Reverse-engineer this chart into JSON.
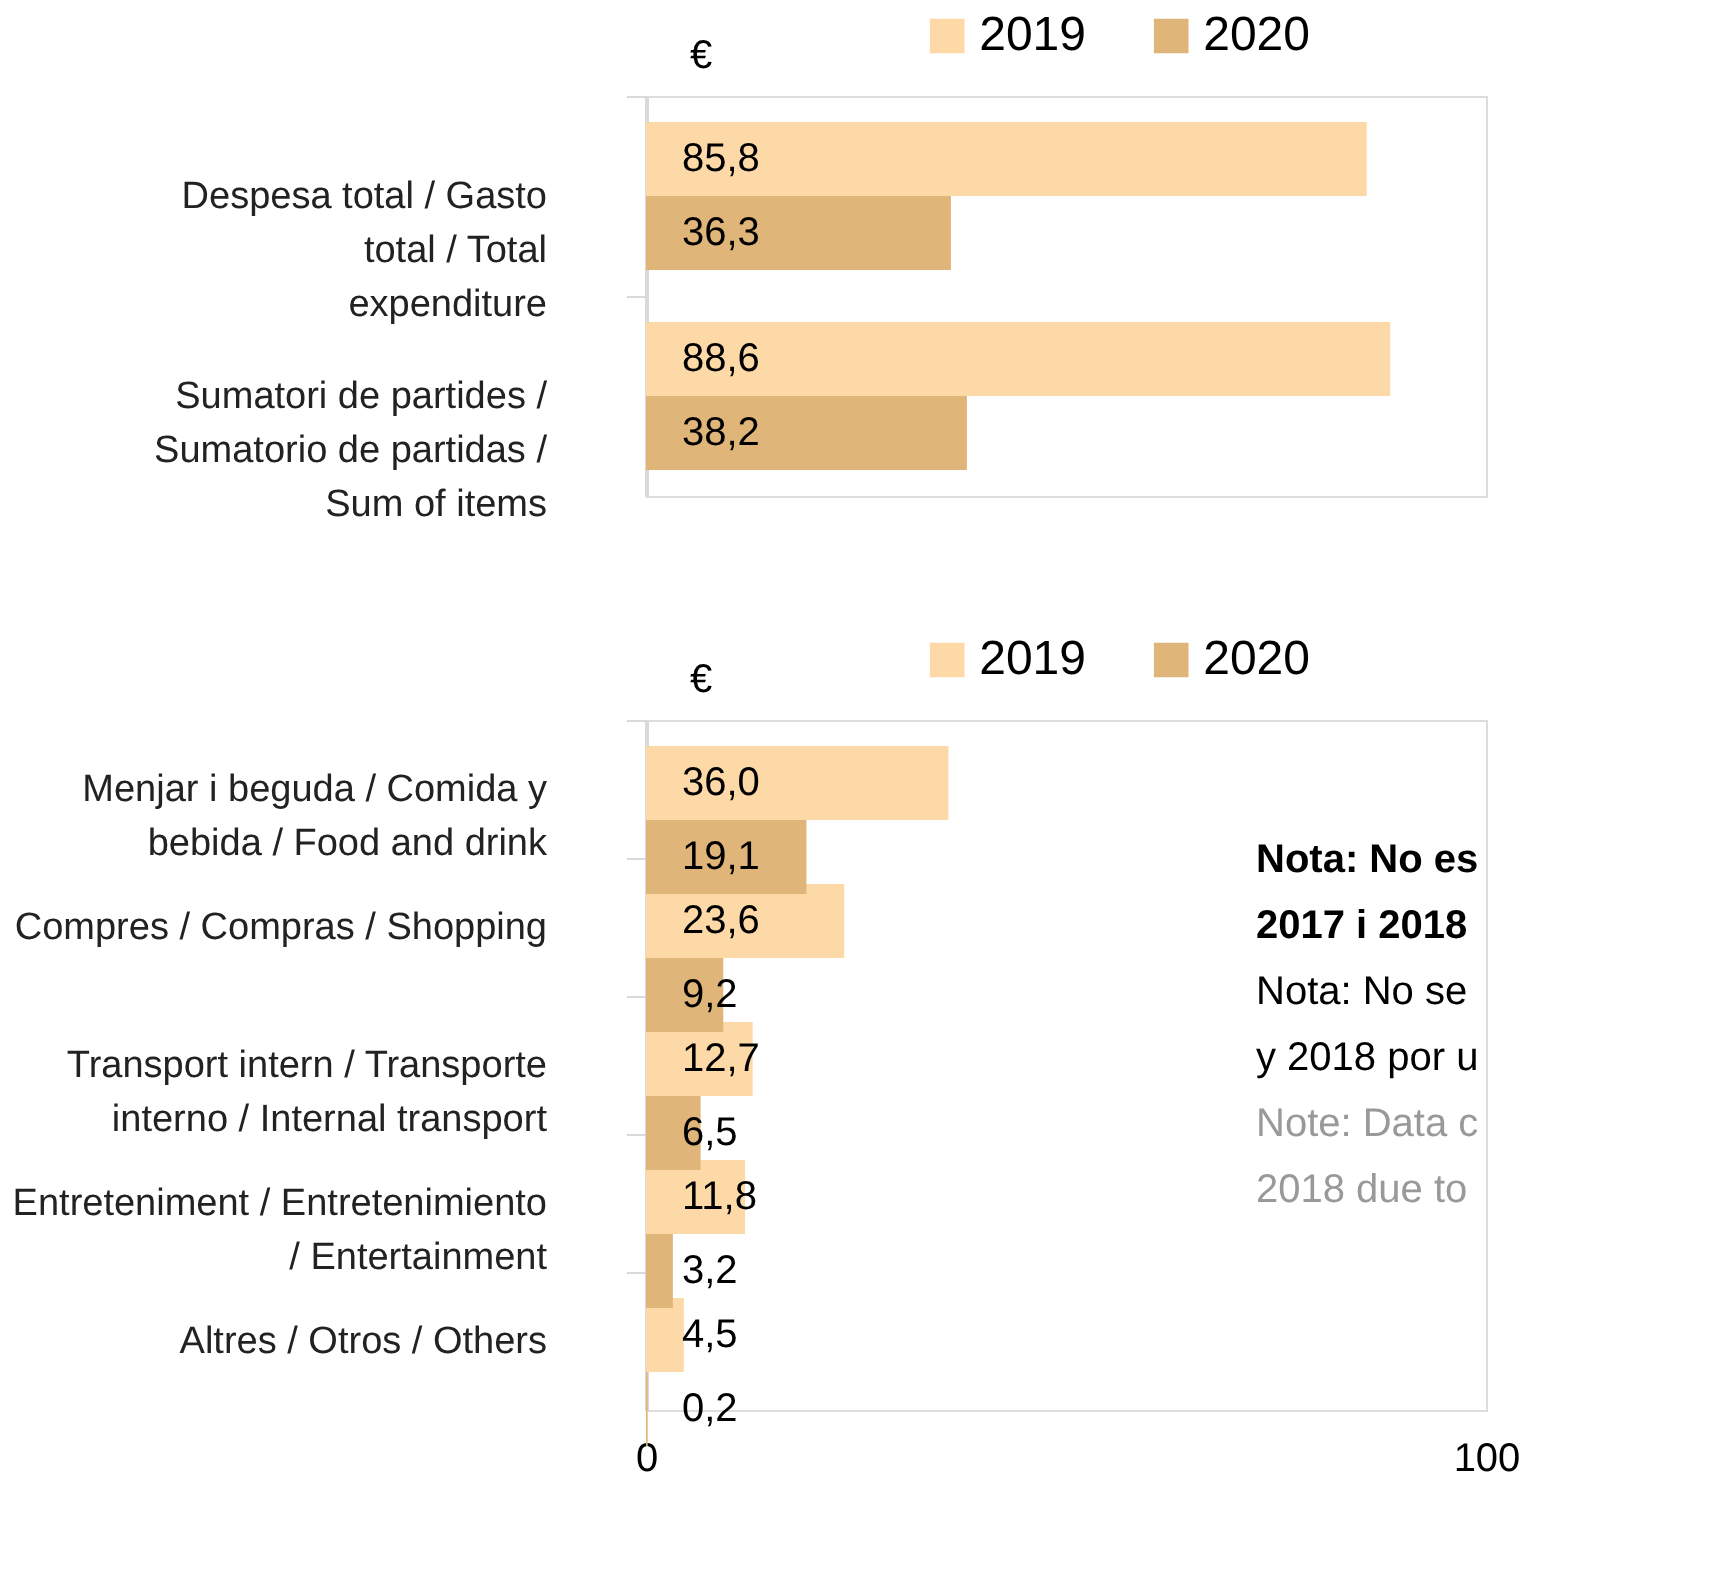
{
  "chart_data": [
    {
      "type": "bar",
      "orientation": "horizontal",
      "xlabel": "€",
      "categories": [
        "Despesa total / Gasto total / Total expenditure",
        "Sumatori de partides / Sumatorio de partidas / Sum of items"
      ],
      "series": [
        {
          "name": "2019",
          "color": "#fdd9a8",
          "values": [
            85.8,
            88.6
          ],
          "value_labels": [
            "85,8",
            "88,6"
          ]
        },
        {
          "name": "2020",
          "color": "#e0b57a",
          "values": [
            36.3,
            38.2
          ],
          "value_labels": [
            "36,3",
            "38,2"
          ]
        }
      ],
      "xlim": [
        0,
        100
      ],
      "tick_labels": "y",
      "legend": "top",
      "grid": false
    },
    {
      "type": "bar",
      "orientation": "horizontal",
      "xlabel": "€",
      "categories": [
        "Menjar i beguda / Comida y bebida / Food and drink",
        "Compres / Compras / Shopping",
        "Transport intern / Transporte interno / Internal transport",
        "Entreteniment / Entretenimiento / Entertainment",
        "Altres / Otros / Others"
      ],
      "series": [
        {
          "name": "2019",
          "color": "#fdd9a8",
          "values": [
            36.0,
            23.6,
            12.7,
            11.8,
            4.5
          ],
          "value_labels": [
            "36,0",
            "23,6",
            "12,7",
            "11,8",
            "4,5"
          ]
        },
        {
          "name": "2020",
          "color": "#e0b57a",
          "values": [
            19.1,
            9.2,
            6.5,
            3.2,
            0.2
          ],
          "value_labels": [
            "19,1",
            "9,2",
            "6,5",
            "3,2",
            "0,2"
          ]
        }
      ],
      "xlim": [
        0,
        100
      ],
      "xticks": [
        0,
        100
      ],
      "legend": "top",
      "grid": false,
      "annotations": [
        "Nota: No es",
        "2017 i 2018",
        "Nota: No se",
        "y 2018 por u",
        "Note: Data c",
        "2018 due to"
      ]
    }
  ]
}
